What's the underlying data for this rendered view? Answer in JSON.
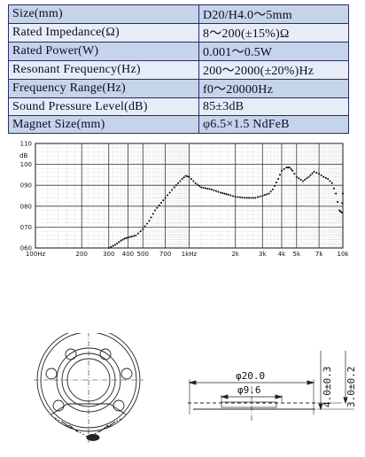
{
  "specs": [
    {
      "param": "Size(mm)",
      "value": "D20/H4.0～5mm"
    },
    {
      "param": "Rated Impedance(Ω)",
      "value": "8～200(±15%)Ω"
    },
    {
      "param": "Rated Power(W)",
      "value": "0.001～0.5W"
    },
    {
      "param": "Resonant Frequency(Hz)",
      "value": "200～2000(±20%)Hz"
    },
    {
      "param": "Frequency Range(Hz)",
      "value": "f0～20000Hz"
    },
    {
      "param": "Sound Pressure Level(dB)",
      "value": "85±3dB"
    },
    {
      "param": "Magnet Size(mm)",
      "value": "φ6.5×1.5 NdFeB"
    }
  ],
  "chart_data": {
    "type": "line",
    "title": "",
    "ylabel": "dB",
    "xlabel": "",
    "x_scale": "log",
    "xlim": [
      100,
      10000
    ],
    "ylim": [
      60,
      110
    ],
    "grid": true,
    "y_ticks": [
      "060",
      "070",
      "080",
      "090",
      "100",
      "110"
    ],
    "x_ticks": [
      "100Hz",
      "200",
      "300",
      "400",
      "500",
      "700",
      "1kHz",
      "2k",
      "3k",
      "4k",
      "5k",
      "7k",
      "10k"
    ],
    "x": [
      300,
      330,
      360,
      380,
      400,
      450,
      500,
      550,
      600,
      700,
      800,
      900,
      950,
      1000,
      1100,
      1200,
      1400,
      1600,
      1800,
      2000,
      2300,
      2700,
      3000,
      3300,
      3500,
      3800,
      4000,
      4300,
      4500,
      4700,
      5000,
      5500,
      6000,
      6500,
      7000,
      7500,
      8000,
      8500,
      9000,
      9500,
      9800,
      10000
    ],
    "values": [
      60,
      61.5,
      63.5,
      64.5,
      65,
      66,
      69,
      73,
      78,
      84,
      89,
      93,
      94.5,
      94,
      91,
      89,
      88,
      86.5,
      85.5,
      84.5,
      84,
      84,
      85,
      86,
      88,
      93,
      97,
      98.5,
      98.5,
      97,
      94,
      92,
      94,
      96.5,
      95.5,
      94,
      93,
      91,
      86,
      78,
      77,
      86
    ]
  },
  "drawing": {
    "dim_outer": "φ20.0",
    "dim_inner": "φ9.6",
    "dim_h1": "4.0±0.3",
    "dim_h2": "3.0±0.2"
  }
}
